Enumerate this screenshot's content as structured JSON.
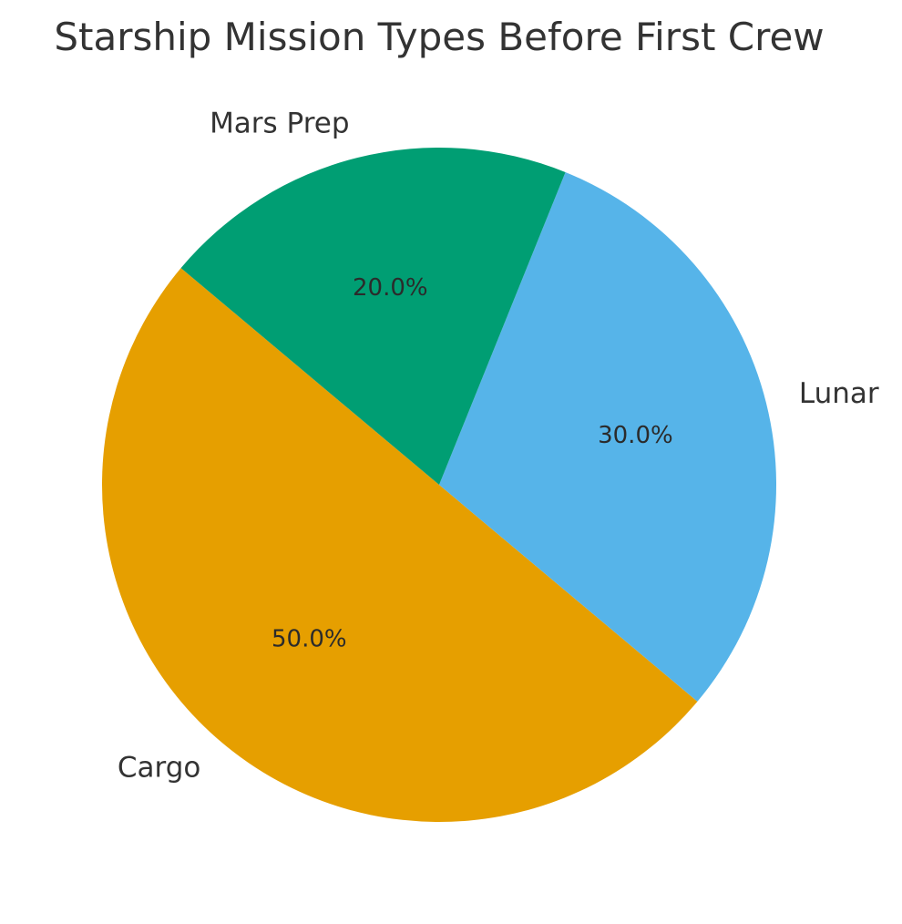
{
  "chart_data": {
    "type": "pie",
    "title": "Starship Mission Types Before First Crew",
    "categories": [
      "Cargo",
      "Lunar",
      "Mars Prep"
    ],
    "values": [
      50,
      30,
      20
    ],
    "percent_labels": [
      "50.0%",
      "30.0%",
      "20.0%"
    ],
    "colors": [
      "#E69F00",
      "#56B4E9",
      "#009E73"
    ],
    "legend": "none"
  }
}
